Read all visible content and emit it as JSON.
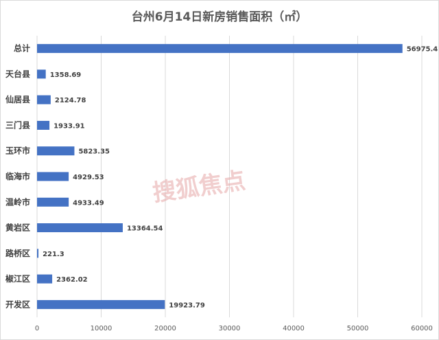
{
  "chart_data": {
    "type": "bar",
    "orientation": "horizontal",
    "title": "台州6月14日新房销售面积（㎡）",
    "categories": [
      "总计",
      "天台县",
      "仙居县",
      "三门县",
      "玉环市",
      "临海市",
      "温岭市",
      "黄岩区",
      "路桥区",
      "椒江区",
      "开发区"
    ],
    "values": [
      56975.4,
      1358.69,
      2124.78,
      1933.91,
      5823.35,
      4929.53,
      4933.49,
      13364.54,
      221.3,
      2362.02,
      19923.79
    ],
    "value_labels": [
      "56975.4",
      "1358.69",
      "2124.78",
      "1933.91",
      "5823.35",
      "4929.53",
      "4933.49",
      "13364.54",
      "221.3",
      "2362.02",
      "19923.79"
    ],
    "xlim": [
      0,
      60000
    ],
    "xticks": [
      0,
      10000,
      20000,
      30000,
      40000,
      50000,
      60000
    ],
    "xtick_labels": [
      "0",
      "10000",
      "20000",
      "30000",
      "40000",
      "50000",
      "60000"
    ],
    "grid": "vertical",
    "bar_color": "#4472c4",
    "grid_color": "#d9d9d9"
  },
  "watermark": "搜狐焦点"
}
